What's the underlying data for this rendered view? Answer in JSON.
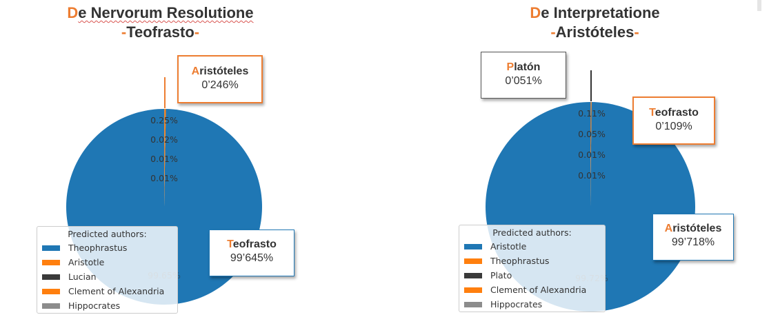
{
  "colors": {
    "accent": "#ED7D31",
    "pie_main": "#1F77B4"
  },
  "chart_data": [
    {
      "type": "pie",
      "title_initial": "D",
      "title_rest": "e Nervorum Resolutione",
      "subtitle_dash_left": "-",
      "subtitle": "Teofrasto",
      "subtitle_dash_right": "-",
      "slices": [
        {
          "label": "Theophrastus",
          "value": 99.645,
          "pct_label": "99.65%",
          "color": "#1F77B4"
        },
        {
          "label": "Aristotle",
          "value": 0.246,
          "pct_label": "0.25%",
          "color": "#FF7F0E"
        },
        {
          "label": "Lucian",
          "value": 0.02,
          "pct_label": "0.02%",
          "color": "#3A3A3A"
        },
        {
          "label": "Clement of Alexandria",
          "value": 0.01,
          "pct_label": "0.01%",
          "color": "#FF7F0E"
        },
        {
          "label": "Hippocrates",
          "value": 0.01,
          "pct_label": "0.01%",
          "color": "#8C8C8C"
        }
      ],
      "legend_title": "Predicted authors:",
      "legend_position": "lower-left",
      "callouts": [
        {
          "initial": "A",
          "rest": "ristóteles",
          "value": "0’246%"
        },
        {
          "initial": "T",
          "rest": "eofrasto",
          "value": "99’645%"
        }
      ]
    },
    {
      "type": "pie",
      "title_initial": "D",
      "title_rest": "e Interpretatione",
      "subtitle_dash_left": "-",
      "subtitle": "Aristóteles",
      "subtitle_dash_right": "-",
      "slices": [
        {
          "label": "Aristotle",
          "value": 99.718,
          "pct_label": "99.72%",
          "color": "#1F77B4"
        },
        {
          "label": "Theophrastus",
          "value": 0.109,
          "pct_label": "0.11%",
          "color": "#FF7F0E"
        },
        {
          "label": "Plato",
          "value": 0.051,
          "pct_label": "0.05%",
          "color": "#3A3A3A"
        },
        {
          "label": "Clement of Alexandria",
          "value": 0.01,
          "pct_label": "0.01%",
          "color": "#FF7F0E"
        },
        {
          "label": "Hippocrates",
          "value": 0.01,
          "pct_label": "0.01%",
          "color": "#8C8C8C"
        }
      ],
      "legend_title": "Predicted authors:",
      "legend_position": "lower-left",
      "callouts": [
        {
          "initial": "P",
          "rest": "latón",
          "value": "0’051%"
        },
        {
          "initial": "T",
          "rest": "eofrasto",
          "value": "0’109%"
        },
        {
          "initial": "A",
          "rest": "ristóteles",
          "value": "99’718%"
        }
      ]
    }
  ]
}
